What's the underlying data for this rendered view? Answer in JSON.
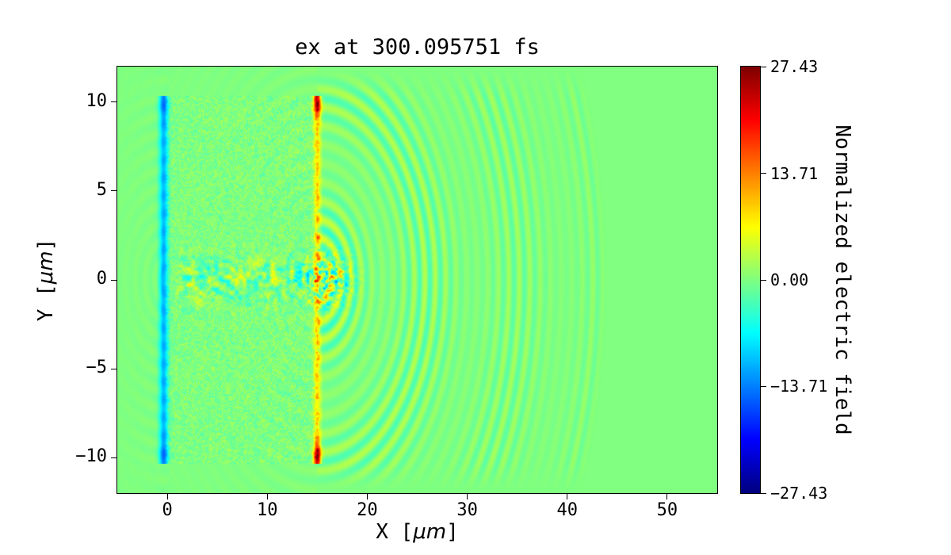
{
  "chart_data": {
    "type": "heatmap",
    "title": "ex at 300.095751 fs",
    "xlabel": {
      "prefix": "X [",
      "unit": "μm",
      "suffix": "]"
    },
    "ylabel": {
      "prefix": "Y [",
      "unit": "μm",
      "suffix": "]"
    },
    "x_range": [
      -5,
      55
    ],
    "y_range": [
      -12,
      12
    ],
    "x_ticks": [
      0,
      10,
      20,
      30,
      40,
      50
    ],
    "x_tick_labels": [
      "0",
      "10",
      "20",
      "30",
      "40",
      "50"
    ],
    "y_ticks": [
      10,
      5,
      0,
      -5,
      -10
    ],
    "y_tick_labels": [
      "10",
      "5",
      "0",
      "−5",
      "−10"
    ],
    "colorbar": {
      "label": "Normalized electric field",
      "vmin": -27.43,
      "vmax": 27.43,
      "tick_values": [
        27.43,
        13.71,
        0,
        -13.71,
        -27.43
      ],
      "tick_labels": [
        "27.43",
        "13.71",
        "0.00",
        "−13.71",
        "−27.43"
      ],
      "colormap": "jet"
    },
    "grid": false,
    "description": "PIC-simulation snapshot of normalized transverse electric field ex at t = 300.095751 fs: plasma slab spanning x = 0 to 15 μm, |y| < 10.3 μm with fine speckle noise; cyan-blue sheath at x ≈ -0.4 μm; bright orange sheath at x = 15 μm with dark-red hotspots at y = ±10 μm; turbulent laser channel along y = 0; concentric circular wavefronts radiating from (15, 0) out to radius ≈ 29 μm; uniform zero-field green elsewhere",
    "features": {
      "plasma_slab": {
        "x0": 0,
        "x1": 15,
        "y_half": 10.35,
        "noise_amp": 2.2
      },
      "left_sheath": {
        "x_center": -0.35,
        "sigma": 0.45,
        "value": -11
      },
      "right_sheath": {
        "x_center": 15,
        "sigma": 0.35,
        "value": 9,
        "hotspot_value": 19,
        "hotspot_y": 10,
        "hotspot_sigma": 0.8
      },
      "channel": {
        "y_half": 2.2,
        "x0": 0.3,
        "x1": 18.5,
        "noise_amp": 7
      },
      "core": {
        "x": 15.8,
        "y": 0,
        "amp": 13
      },
      "wavefronts": {
        "center_x": 15,
        "center_y": 0,
        "wavelength": 1.05,
        "max_radius": 29,
        "amp": 3.4
      },
      "back_waves": {
        "center_x": 0,
        "wavelength": 1.0,
        "amp": 1.0
      }
    }
  }
}
